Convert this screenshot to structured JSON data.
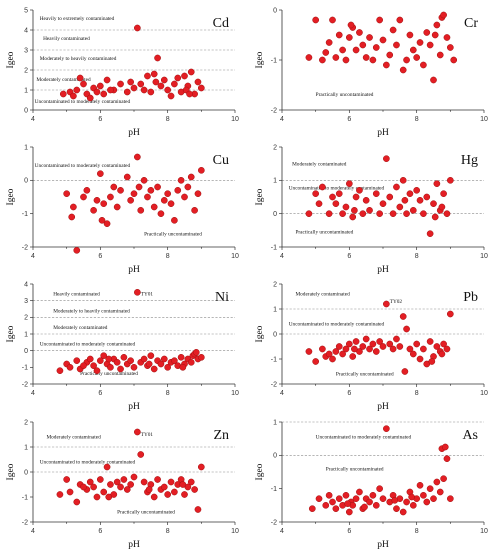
{
  "colors": {
    "point_fill": "#e31e24",
    "point_stroke": "#a01010",
    "threshold_line": "#8a8a8a",
    "axis": "#333333"
  },
  "chart_data": [
    {
      "type": "scatter",
      "element": "Cd",
      "xlabel": "pH",
      "ylabel": "Igeo",
      "xlim": [
        4,
        10
      ],
      "ylim": [
        0,
        5
      ],
      "xticks": [
        "4",
        "6",
        "8",
        "10"
      ],
      "yticks": [
        "0",
        "1",
        "2",
        "3",
        "4",
        "5"
      ],
      "thresholds": [
        1,
        2,
        3,
        4
      ],
      "annotations": [
        {
          "text": "Heavily to extremely contaminated",
          "x": 4.2,
          "y": 4.5
        },
        {
          "text": "Heavily contaminated",
          "x": 4.3,
          "y": 3.5
        },
        {
          "text": "Moderately to heavily contaminated",
          "x": 4.2,
          "y": 2.5
        },
        {
          "text": "Moderately contaminated",
          "x": 4.1,
          "y": 1.45
        },
        {
          "text": "Uncontaminated to moderately contaminated",
          "x": 4.05,
          "y": 0.35
        }
      ],
      "x": [
        4.9,
        5.1,
        5.2,
        5.3,
        5.5,
        5.6,
        5.7,
        5.8,
        5.9,
        6.0,
        6.1,
        6.2,
        6.4,
        6.6,
        6.8,
        6.9,
        7.0,
        7.1,
        7.2,
        7.3,
        7.4,
        7.5,
        7.6,
        7.7,
        7.8,
        7.9,
        8.0,
        8.1,
        8.2,
        8.3,
        8.4,
        8.5,
        8.6,
        8.7,
        8.8,
        8.9,
        9.0,
        5.4,
        6.3,
        7.65,
        8.55,
        8.65
      ],
      "y": [
        0.8,
        0.9,
        0.7,
        1.0,
        1.3,
        0.8,
        0.6,
        1.1,
        0.9,
        1.2,
        0.8,
        1.5,
        1.0,
        1.3,
        0.9,
        1.4,
        1.1,
        4.1,
        1.3,
        1.0,
        1.7,
        0.9,
        1.8,
        2.6,
        1.2,
        1.5,
        1.0,
        0.7,
        1.3,
        1.6,
        0.9,
        1.7,
        1.2,
        1.9,
        0.8,
        1.4,
        1.1,
        1.6,
        1.0,
        1.4,
        1.0,
        0.8
      ]
    },
    {
      "type": "scatter",
      "element": "Cr",
      "xlabel": "pH",
      "ylabel": "Igeo",
      "xlim": [
        4,
        10
      ],
      "ylim": [
        -2,
        0
      ],
      "xticks": [
        "4",
        "6",
        "8",
        "10"
      ],
      "yticks": [
        "-2",
        "-1",
        "0"
      ],
      "thresholds": [],
      "annotations": [
        {
          "text": "Practically uncontaminated",
          "x": 5.0,
          "y": -1.72
        }
      ],
      "x": [
        4.8,
        5.0,
        5.2,
        5.4,
        5.5,
        5.6,
        5.7,
        5.8,
        5.9,
        6.0,
        6.1,
        6.2,
        6.3,
        6.4,
        6.5,
        6.6,
        6.7,
        6.8,
        6.9,
        7.0,
        7.1,
        7.2,
        7.4,
        7.5,
        7.7,
        7.8,
        7.9,
        8.0,
        8.1,
        8.2,
        8.3,
        8.4,
        8.5,
        8.6,
        8.7,
        8.75,
        8.8,
        8.9,
        9.0,
        9.1,
        5.3,
        6.05,
        7.3,
        7.6,
        8.55
      ],
      "y": [
        -0.95,
        -0.2,
        -1.0,
        -0.65,
        -0.2,
        -0.95,
        -0.5,
        -0.8,
        -1.0,
        -0.55,
        -0.35,
        -0.8,
        -0.45,
        -0.7,
        -0.95,
        -0.55,
        -1.0,
        -0.75,
        -0.2,
        -0.6,
        -1.1,
        -0.9,
        -0.7,
        -0.2,
        -1.0,
        -0.5,
        -0.8,
        -0.95,
        -0.65,
        -1.1,
        -0.45,
        -0.7,
        -1.4,
        -0.3,
        -0.9,
        -0.15,
        -0.1,
        -0.55,
        -0.75,
        -1.0,
        -0.85,
        -0.3,
        -0.4,
        -1.2,
        -0.5
      ]
    },
    {
      "type": "scatter",
      "element": "Cu",
      "xlabel": "pH",
      "ylabel": "Igeo",
      "xlim": [
        4,
        10
      ],
      "ylim": [
        -2,
        1
      ],
      "xticks": [
        "4",
        "6",
        "8",
        "10"
      ],
      "yticks": [
        "-2",
        "-1",
        "0",
        "1"
      ],
      "thresholds": [
        0
      ],
      "annotations": [
        {
          "text": "Uncontaminated to moderately contaminated",
          "x": 4.05,
          "y": 0.4
        },
        {
          "text": "Practically uncontaminated",
          "x": 7.3,
          "y": -1.65
        }
      ],
      "x": [
        5.0,
        5.2,
        5.3,
        5.5,
        5.6,
        5.8,
        5.9,
        6.0,
        6.1,
        6.2,
        6.3,
        6.4,
        6.5,
        6.6,
        6.8,
        6.9,
        7.0,
        7.1,
        7.2,
        7.3,
        7.4,
        7.5,
        7.6,
        7.7,
        7.8,
        7.9,
        8.0,
        8.1,
        8.2,
        8.3,
        8.4,
        8.5,
        8.6,
        8.7,
        8.8,
        8.9,
        9.0,
        5.15,
        6.05,
        7.15
      ],
      "y": [
        -0.4,
        -0.8,
        -2.1,
        -0.5,
        -0.3,
        -0.9,
        -0.6,
        0.2,
        -0.7,
        -1.3,
        -0.5,
        -0.2,
        -0.8,
        -0.3,
        0.1,
        -0.6,
        -0.4,
        0.7,
        -0.9,
        0.0,
        -0.5,
        -0.3,
        -0.8,
        -0.2,
        -1.0,
        -0.6,
        -0.4,
        -0.7,
        -1.2,
        -0.3,
        0.0,
        -0.5,
        -0.2,
        0.1,
        -0.9,
        -0.4,
        0.3,
        -1.1,
        -1.2,
        -0.2
      ]
    },
    {
      "type": "scatter",
      "element": "Hg",
      "xlabel": "pH",
      "ylabel": "Igeo",
      "xlim": [
        4,
        10
      ],
      "ylim": [
        -1,
        2
      ],
      "xticks": [
        "4",
        "6",
        "8",
        "10"
      ],
      "yticks": [
        "-1",
        "0",
        "1",
        "2"
      ],
      "thresholds": [
        0,
        1
      ],
      "annotations": [
        {
          "text": "Moderately contaminated",
          "x": 4.3,
          "y": 1.45
        },
        {
          "text": "Uncontaminated to moderately contaminated",
          "x": 4.2,
          "y": 0.72
        },
        {
          "text": "Practically uncontaminated",
          "x": 4.4,
          "y": -0.6
        }
      ],
      "x": [
        4.8,
        5.0,
        5.2,
        5.4,
        5.5,
        5.6,
        5.7,
        5.8,
        5.9,
        6.0,
        6.1,
        6.2,
        6.3,
        6.4,
        6.5,
        6.6,
        6.8,
        6.9,
        7.0,
        7.1,
        7.2,
        7.3,
        7.4,
        7.5,
        7.6,
        7.7,
        7.8,
        7.9,
        8.0,
        8.1,
        8.2,
        8.3,
        8.4,
        8.5,
        8.6,
        8.7,
        8.8,
        8.9,
        9.0,
        5.1,
        6.15,
        7.65,
        8.55,
        8.75
      ],
      "y": [
        0.0,
        0.6,
        0.8,
        0.0,
        0.5,
        0.3,
        0.6,
        0.0,
        0.2,
        0.9,
        -0.1,
        0.5,
        0.7,
        0.0,
        0.4,
        0.1,
        0.6,
        0.0,
        0.3,
        1.65,
        0.5,
        0.0,
        0.8,
        0.2,
        1.0,
        0.0,
        0.6,
        0.1,
        0.7,
        0.4,
        0.0,
        0.5,
        -0.6,
        0.3,
        0.9,
        0.1,
        0.6,
        0.0,
        1.0,
        0.3,
        0.1,
        0.4,
        -0.1,
        0.2
      ]
    },
    {
      "type": "scatter",
      "element": "Ni",
      "xlabel": "pH",
      "ylabel": "Igeo",
      "xlim": [
        4,
        10
      ],
      "ylim": [
        -2,
        4
      ],
      "xticks": [
        "4",
        "6",
        "8",
        "10"
      ],
      "yticks": [
        "-2",
        "-1",
        "0",
        "1",
        "2",
        "3",
        "4"
      ],
      "thresholds": [
        0,
        1,
        2,
        3
      ],
      "annotations": [
        {
          "text": "Heavily contaminated",
          "x": 4.6,
          "y": 3.3
        },
        {
          "text": "Moderately to heavily contaminated",
          "x": 4.6,
          "y": 2.3
        },
        {
          "text": "Moderately contaminated",
          "x": 4.6,
          "y": 1.3
        },
        {
          "text": "Uncontaminated to moderately contaminated",
          "x": 4.2,
          "y": 0.3
        },
        {
          "text": "Practically uncontaminated",
          "x": 5.4,
          "y": -1.45
        },
        {
          "text": "TY01",
          "x": 7.2,
          "y": 3.3
        }
      ],
      "x": [
        4.8,
        5.0,
        5.1,
        5.3,
        5.4,
        5.6,
        5.7,
        5.8,
        5.9,
        6.0,
        6.1,
        6.2,
        6.3,
        6.4,
        6.5,
        6.6,
        6.7,
        6.8,
        6.9,
        7.0,
        7.1,
        7.2,
        7.3,
        7.4,
        7.5,
        7.6,
        7.7,
        7.8,
        7.9,
        8.0,
        8.1,
        8.2,
        8.3,
        8.4,
        8.5,
        8.6,
        8.7,
        8.75,
        8.8,
        8.85,
        8.9,
        9.0,
        5.5,
        6.25,
        7.45,
        8.45
      ],
      "y": [
        -1.2,
        -0.8,
        -1.0,
        -0.6,
        -1.1,
        -0.7,
        -0.5,
        -0.9,
        -1.2,
        -0.6,
        -0.3,
        -0.8,
        -1.0,
        -0.5,
        -0.7,
        -1.1,
        -0.4,
        -0.8,
        -0.6,
        -1.0,
        3.5,
        -0.7,
        -0.5,
        -0.9,
        -0.3,
        -1.1,
        -0.6,
        -0.8,
        -0.5,
        -1.0,
        -0.7,
        -0.6,
        -0.9,
        -0.4,
        -0.8,
        -0.5,
        -0.7,
        -0.3,
        -0.2,
        -0.1,
        -0.5,
        -0.4,
        -0.9,
        -0.5,
        -0.8,
        -1.0
      ]
    },
    {
      "type": "scatter",
      "element": "Pb",
      "xlabel": "pH",
      "ylabel": "Igeo",
      "xlim": [
        4,
        10
      ],
      "ylim": [
        -2,
        2
      ],
      "xticks": [
        "4",
        "6",
        "8",
        "10"
      ],
      "yticks": [
        "-2",
        "-1",
        "0",
        "1",
        "2"
      ],
      "thresholds": [
        0,
        1
      ],
      "annotations": [
        {
          "text": "Moderately contaminated",
          "x": 4.4,
          "y": 1.55
        },
        {
          "text": "Uncontaminated to moderately contaminated",
          "x": 4.2,
          "y": 0.35
        },
        {
          "text": "Practically uncontaminated",
          "x": 5.6,
          "y": -1.65
        },
        {
          "text": "TY02",
          "x": 7.2,
          "y": 1.25
        }
      ],
      "x": [
        4.8,
        5.0,
        5.2,
        5.3,
        5.5,
        5.6,
        5.7,
        5.8,
        5.9,
        6.0,
        6.1,
        6.2,
        6.3,
        6.4,
        6.5,
        6.6,
        6.7,
        6.8,
        6.9,
        7.0,
        7.1,
        7.2,
        7.3,
        7.4,
        7.5,
        7.6,
        7.7,
        7.8,
        7.9,
        8.0,
        8.1,
        8.2,
        8.3,
        8.4,
        8.5,
        8.6,
        8.7,
        8.8,
        8.9,
        9.0,
        5.4,
        6.15,
        7.65,
        8.45,
        8.75
      ],
      "y": [
        -0.7,
        -1.1,
        -0.6,
        -0.9,
        -1.0,
        -0.7,
        -0.5,
        -0.8,
        -0.6,
        -0.4,
        -0.9,
        -0.3,
        -0.7,
        -0.5,
        -0.2,
        -0.6,
        -0.4,
        -0.7,
        -0.3,
        -0.5,
        1.2,
        -0.4,
        -0.6,
        -0.2,
        -0.5,
        0.7,
        0.2,
        -0.6,
        -0.8,
        -0.4,
        -1.0,
        -0.6,
        -1.2,
        -0.3,
        -0.9,
        -0.5,
        -0.7,
        -0.4,
        -0.6,
        0.8,
        -0.8,
        -0.6,
        -1.5,
        -1.1,
        -0.8
      ]
    },
    {
      "type": "scatter",
      "element": "Zn",
      "xlabel": "pH",
      "ylabel": "Igeo",
      "xlim": [
        4,
        10
      ],
      "ylim": [
        -2,
        2
      ],
      "xticks": [
        "4",
        "6",
        "8",
        "10"
      ],
      "yticks": [
        "-2",
        "-1",
        "0",
        "1",
        "2"
      ],
      "thresholds": [
        0,
        1
      ],
      "annotations": [
        {
          "text": "Moderately contaminated",
          "x": 4.4,
          "y": 1.35
        },
        {
          "text": "Uncontaminated to moderately contaminated",
          "x": 4.2,
          "y": 0.35
        },
        {
          "text": "Practically uncontaminated",
          "x": 6.5,
          "y": -1.65
        },
        {
          "text": "TY01",
          "x": 7.2,
          "y": 1.45
        }
      ],
      "x": [
        4.8,
        5.0,
        5.1,
        5.3,
        5.4,
        5.6,
        5.7,
        5.8,
        5.9,
        6.0,
        6.1,
        6.2,
        6.3,
        6.4,
        6.5,
        6.6,
        6.7,
        6.8,
        6.9,
        7.0,
        7.1,
        7.2,
        7.3,
        7.4,
        7.5,
        7.6,
        7.7,
        7.8,
        7.9,
        8.0,
        8.1,
        8.2,
        8.3,
        8.4,
        8.5,
        8.6,
        8.7,
        8.8,
        8.9,
        9.0,
        5.5,
        6.25,
        7.45,
        8.45
      ],
      "y": [
        -0.9,
        -0.3,
        -0.8,
        -1.2,
        -0.5,
        -0.7,
        -0.4,
        -0.6,
        -1.0,
        -0.3,
        -0.8,
        0.2,
        -0.5,
        -0.9,
        -0.4,
        -0.6,
        -0.3,
        -0.7,
        -0.5,
        -0.2,
        1.6,
        0.7,
        -0.4,
        -0.8,
        -0.5,
        -1.0,
        -0.3,
        -0.7,
        -0.6,
        -0.9,
        -0.4,
        -0.8,
        -0.5,
        -0.3,
        -0.9,
        -0.6,
        -0.4,
        -0.7,
        -1.5,
        0.2,
        -0.6,
        -1.0,
        -0.7,
        -0.5
      ]
    },
    {
      "type": "scatter",
      "element": "As",
      "xlabel": "pH",
      "ylabel": "Igeo",
      "xlim": [
        4,
        10
      ],
      "ylim": [
        -2,
        1
      ],
      "xticks": [
        "4",
        "6",
        "8",
        "10"
      ],
      "yticks": [
        "-2",
        "-1",
        "0",
        "1"
      ],
      "thresholds": [
        0,
        1
      ],
      "annotations": [
        {
          "text": "Uncontaminated to moderately contaminated",
          "x": 5.0,
          "y": 0.5
        },
        {
          "text": "Practically uncontaminated",
          "x": 5.3,
          "y": -0.45
        }
      ],
      "x": [
        4.9,
        5.1,
        5.3,
        5.4,
        5.5,
        5.6,
        5.7,
        5.8,
        5.9,
        6.0,
        6.05,
        6.1,
        6.2,
        6.3,
        6.4,
        6.5,
        6.6,
        6.7,
        6.8,
        6.9,
        7.0,
        7.1,
        7.2,
        7.3,
        7.4,
        7.5,
        7.6,
        7.7,
        7.8,
        7.9,
        8.0,
        8.1,
        8.2,
        8.3,
        8.4,
        8.5,
        8.6,
        8.7,
        8.75,
        8.8,
        8.85,
        8.9,
        9.0,
        5.95,
        6.45,
        7.35,
        7.85
      ],
      "y": [
        -1.6,
        -1.3,
        -1.5,
        -1.2,
        -1.4,
        -1.6,
        -1.3,
        -1.5,
        -1.2,
        -1.7,
        -1.4,
        -1.5,
        -1.3,
        -1.1,
        -1.6,
        -1.3,
        -1.4,
        -1.2,
        -1.5,
        -1.0,
        -1.3,
        0.8,
        -1.4,
        -1.2,
        -1.6,
        -1.3,
        -1.7,
        -1.4,
        -1.1,
        -1.5,
        -1.3,
        -0.9,
        -1.2,
        -1.4,
        -1.0,
        -1.3,
        -0.8,
        -1.1,
        0.2,
        -0.7,
        0.25,
        -0.1,
        -1.3,
        -1.45,
        -1.55,
        -1.35,
        -1.25
      ]
    }
  ]
}
